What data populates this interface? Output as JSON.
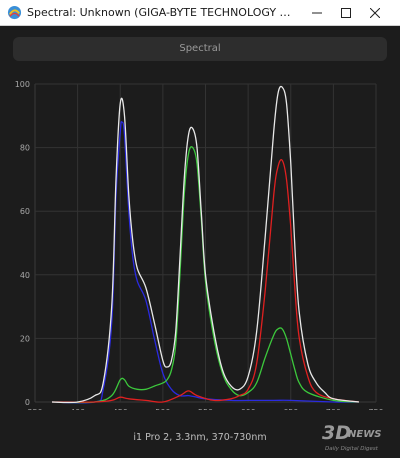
{
  "window": {
    "title": "Spectral: Unknown (GIGA-BYTE TECHNOLOGY CO., LTD. AORUS...",
    "icon": "spectral-app-icon"
  },
  "tab": {
    "label": "Spectral"
  },
  "caption": "i1 Pro 2, 3.3nm, 370-730nm",
  "watermark": {
    "brand": "3D",
    "news": "NEWS",
    "tagline": "Daily Digital Digest"
  },
  "colors": {
    "white": "#e8e8e8",
    "red": "#e02020",
    "green": "#3cc83c",
    "blue": "#2a2ae0",
    "background": "#1c1c1c"
  },
  "chart_data": {
    "type": "line",
    "xlim": [
      350,
      750
    ],
    "ylim": [
      0,
      100
    ],
    "x_ticks": [
      350,
      400,
      450,
      500,
      550,
      600,
      650,
      700,
      750
    ],
    "y_ticks": [
      0,
      20,
      40,
      60,
      80,
      100
    ],
    "grid": true,
    "series": [
      {
        "color": "#e8e8e8",
        "points": [
          [
            370,
            0
          ],
          [
            400,
            0
          ],
          [
            420,
            2
          ],
          [
            430,
            6
          ],
          [
            440,
            30
          ],
          [
            445,
            70
          ],
          [
            450,
            94
          ],
          [
            455,
            90
          ],
          [
            460,
            65
          ],
          [
            465,
            50
          ],
          [
            470,
            42
          ],
          [
            480,
            36
          ],
          [
            490,
            25
          ],
          [
            500,
            13
          ],
          [
            505,
            11
          ],
          [
            510,
            13
          ],
          [
            515,
            22
          ],
          [
            520,
            45
          ],
          [
            525,
            70
          ],
          [
            530,
            84
          ],
          [
            535,
            86
          ],
          [
            540,
            80
          ],
          [
            545,
            60
          ],
          [
            550,
            40
          ],
          [
            560,
            22
          ],
          [
            570,
            10
          ],
          [
            580,
            5
          ],
          [
            590,
            4
          ],
          [
            600,
            8
          ],
          [
            610,
            22
          ],
          [
            620,
            52
          ],
          [
            630,
            85
          ],
          [
            635,
            97
          ],
          [
            640,
            99
          ],
          [
            645,
            94
          ],
          [
            650,
            75
          ],
          [
            655,
            48
          ],
          [
            660,
            28
          ],
          [
            670,
            12
          ],
          [
            680,
            6
          ],
          [
            690,
            3
          ],
          [
            700,
            1
          ],
          [
            730,
            0
          ]
        ]
      },
      {
        "color": "#e02020",
        "points": [
          [
            370,
            0
          ],
          [
            420,
            0
          ],
          [
            440,
            0.5
          ],
          [
            450,
            1.5
          ],
          [
            460,
            1
          ],
          [
            480,
            0.5
          ],
          [
            500,
            0
          ],
          [
            520,
            2
          ],
          [
            530,
            3.5
          ],
          [
            540,
            2
          ],
          [
            560,
            0.5
          ],
          [
            580,
            1
          ],
          [
            590,
            2
          ],
          [
            600,
            4
          ],
          [
            610,
            12
          ],
          [
            620,
            35
          ],
          [
            630,
            65
          ],
          [
            635,
            74
          ],
          [
            640,
            76
          ],
          [
            645,
            70
          ],
          [
            650,
            55
          ],
          [
            655,
            35
          ],
          [
            660,
            20
          ],
          [
            670,
            8
          ],
          [
            680,
            3
          ],
          [
            700,
            1
          ],
          [
            730,
            0
          ]
        ]
      },
      {
        "color": "#3cc83c",
        "points": [
          [
            370,
            0
          ],
          [
            420,
            0
          ],
          [
            440,
            2
          ],
          [
            450,
            7
          ],
          [
            455,
            7
          ],
          [
            460,
            5
          ],
          [
            470,
            4
          ],
          [
            480,
            4
          ],
          [
            490,
            5
          ],
          [
            500,
            6
          ],
          [
            505,
            7
          ],
          [
            510,
            10
          ],
          [
            515,
            18
          ],
          [
            520,
            40
          ],
          [
            525,
            65
          ],
          [
            530,
            78
          ],
          [
            535,
            80
          ],
          [
            540,
            75
          ],
          [
            545,
            58
          ],
          [
            550,
            38
          ],
          [
            560,
            20
          ],
          [
            570,
            9
          ],
          [
            580,
            4
          ],
          [
            590,
            2
          ],
          [
            600,
            3
          ],
          [
            610,
            6
          ],
          [
            620,
            14
          ],
          [
            630,
            21
          ],
          [
            635,
            23
          ],
          [
            640,
            23
          ],
          [
            645,
            20
          ],
          [
            650,
            15
          ],
          [
            655,
            10
          ],
          [
            660,
            6
          ],
          [
            670,
            3
          ],
          [
            700,
            0.5
          ],
          [
            730,
            0
          ]
        ]
      },
      {
        "color": "#2a2ae0",
        "points": [
          [
            370,
            0
          ],
          [
            420,
            0
          ],
          [
            430,
            4
          ],
          [
            440,
            25
          ],
          [
            445,
            65
          ],
          [
            450,
            85
          ],
          [
            452,
            88
          ],
          [
            455,
            84
          ],
          [
            460,
            60
          ],
          [
            465,
            45
          ],
          [
            470,
            38
          ],
          [
            480,
            32
          ],
          [
            490,
            20
          ],
          [
            500,
            9
          ],
          [
            510,
            4
          ],
          [
            520,
            2
          ],
          [
            530,
            2
          ],
          [
            540,
            1.5
          ],
          [
            550,
            1
          ],
          [
            580,
            0.5
          ],
          [
            600,
            0.5
          ],
          [
            630,
            0.5
          ],
          [
            650,
            0.5
          ],
          [
            700,
            0
          ],
          [
            730,
            0
          ]
        ]
      }
    ]
  }
}
